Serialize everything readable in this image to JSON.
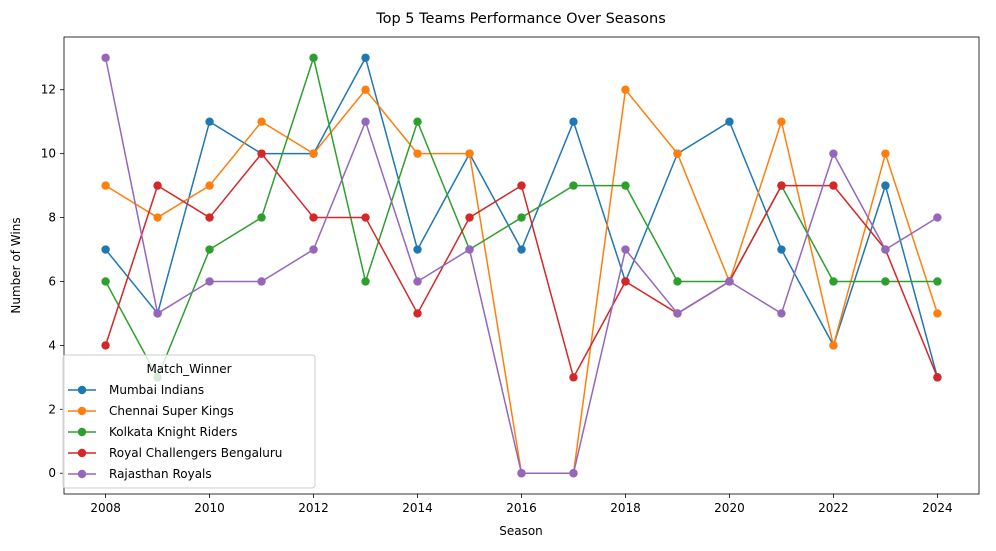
{
  "chart_data": {
    "type": "line",
    "title": "Top 5 Teams Performance Over Seasons",
    "xlabel": "Season",
    "ylabel": "Number of Wins",
    "x": [
      2008,
      2009,
      2010,
      2011,
      2012,
      2013,
      2014,
      2015,
      2016,
      2017,
      2018,
      2019,
      2020,
      2021,
      2022,
      2023,
      2024
    ],
    "xlim": [
      2007.2,
      2024.8
    ],
    "ylim": [
      -0.65,
      13.65
    ],
    "x_ticks": [
      2008,
      2010,
      2012,
      2014,
      2016,
      2018,
      2020,
      2022,
      2024
    ],
    "y_ticks": [
      0,
      2,
      4,
      6,
      8,
      10,
      12
    ],
    "grid": false,
    "legend": {
      "title": "Match_Winner",
      "placement": "lower-left"
    },
    "series": [
      {
        "name": "Mumbai Indians",
        "color": "#1f77b4",
        "values": [
          7,
          5,
          11,
          10,
          10,
          13,
          7,
          10,
          7,
          11,
          6,
          10,
          11,
          7,
          4,
          9,
          3
        ]
      },
      {
        "name": "Chennai Super Kings",
        "color": "#ff7f0e",
        "values": [
          9,
          8,
          9,
          11,
          10,
          12,
          10,
          10,
          0,
          0,
          12,
          10,
          6,
          11,
          4,
          10,
          5
        ]
      },
      {
        "name": "Kolkata Knight Riders",
        "color": "#2ca02c",
        "values": [
          6,
          3,
          7,
          8,
          13,
          6,
          11,
          7,
          8,
          9,
          9,
          6,
          6,
          9,
          6,
          6,
          6
        ]
      },
      {
        "name": "Royal Challengers Bengaluru",
        "color": "#d62728",
        "values": [
          4,
          9,
          8,
          10,
          8,
          8,
          5,
          8,
          9,
          3,
          6,
          5,
          6,
          9,
          9,
          7,
          3
        ]
      },
      {
        "name": "Rajasthan Royals",
        "color": "#9467bd",
        "values": [
          13,
          5,
          6,
          6,
          7,
          11,
          6,
          7,
          0,
          0,
          7,
          5,
          6,
          5,
          10,
          7,
          8
        ]
      }
    ]
  }
}
